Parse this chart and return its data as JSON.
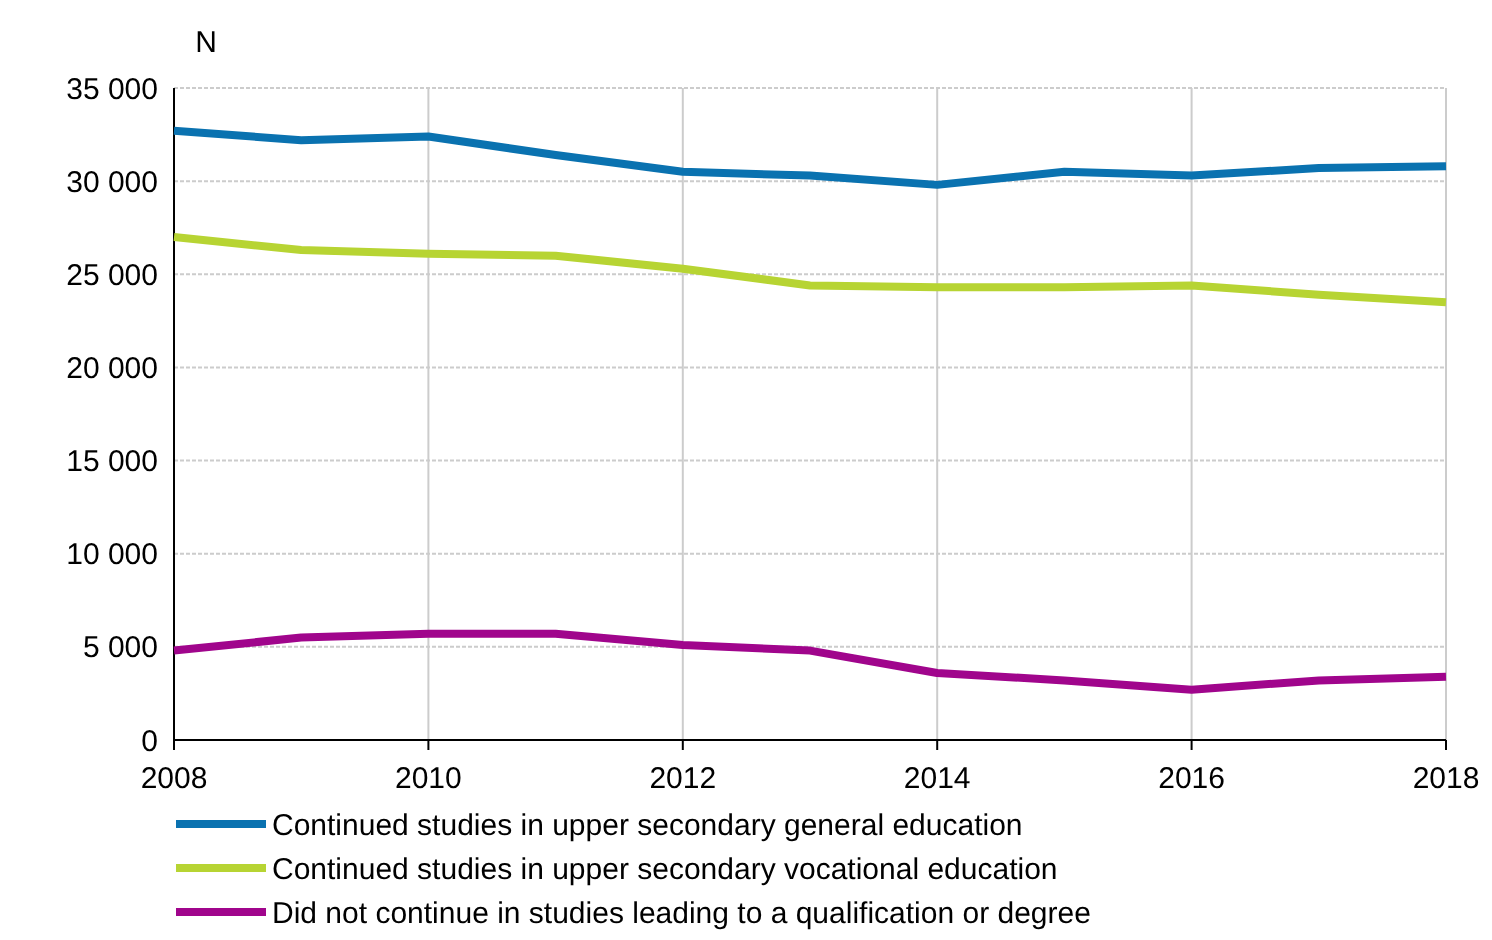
{
  "chart_data": {
    "type": "line",
    "ylabel": "N",
    "x": [
      2008,
      2009,
      2010,
      2011,
      2012,
      2013,
      2014,
      2015,
      2016,
      2017,
      2018
    ],
    "xlim": [
      2008,
      2018
    ],
    "xticks": [
      2008,
      2010,
      2012,
      2014,
      2016,
      2018
    ],
    "ylim": [
      0,
      35000
    ],
    "yticks": [
      {
        "value": 0,
        "label": "0"
      },
      {
        "value": 5000,
        "label": "5 000"
      },
      {
        "value": 10000,
        "label": "10 000"
      },
      {
        "value": 15000,
        "label": "15 000"
      },
      {
        "value": 20000,
        "label": "20 000"
      },
      {
        "value": 25000,
        "label": "25 000"
      },
      {
        "value": 30000,
        "label": "30 000"
      },
      {
        "value": 35000,
        "label": "35 000"
      }
    ],
    "grid": true,
    "legend": "bottom",
    "line_style": "solid",
    "series": [
      {
        "name": "Continued studies in upper secondary general education",
        "color": "#0a72b0",
        "values": [
          32700,
          32200,
          32400,
          31400,
          30500,
          30300,
          29800,
          30500,
          30300,
          30700,
          30800
        ]
      },
      {
        "name": "Continued studies in upper secondary vocational education",
        "color": "#b7d433",
        "values": [
          27000,
          26300,
          26100,
          26000,
          25300,
          24400,
          24300,
          24300,
          24400,
          23900,
          23500
        ]
      },
      {
        "name": "Did not continue in studies leading to a qualification or degree",
        "color": "#a0058c",
        "values": [
          4800,
          5500,
          5700,
          5700,
          5100,
          4800,
          3600,
          3200,
          2700,
          3200,
          3400
        ]
      }
    ]
  }
}
